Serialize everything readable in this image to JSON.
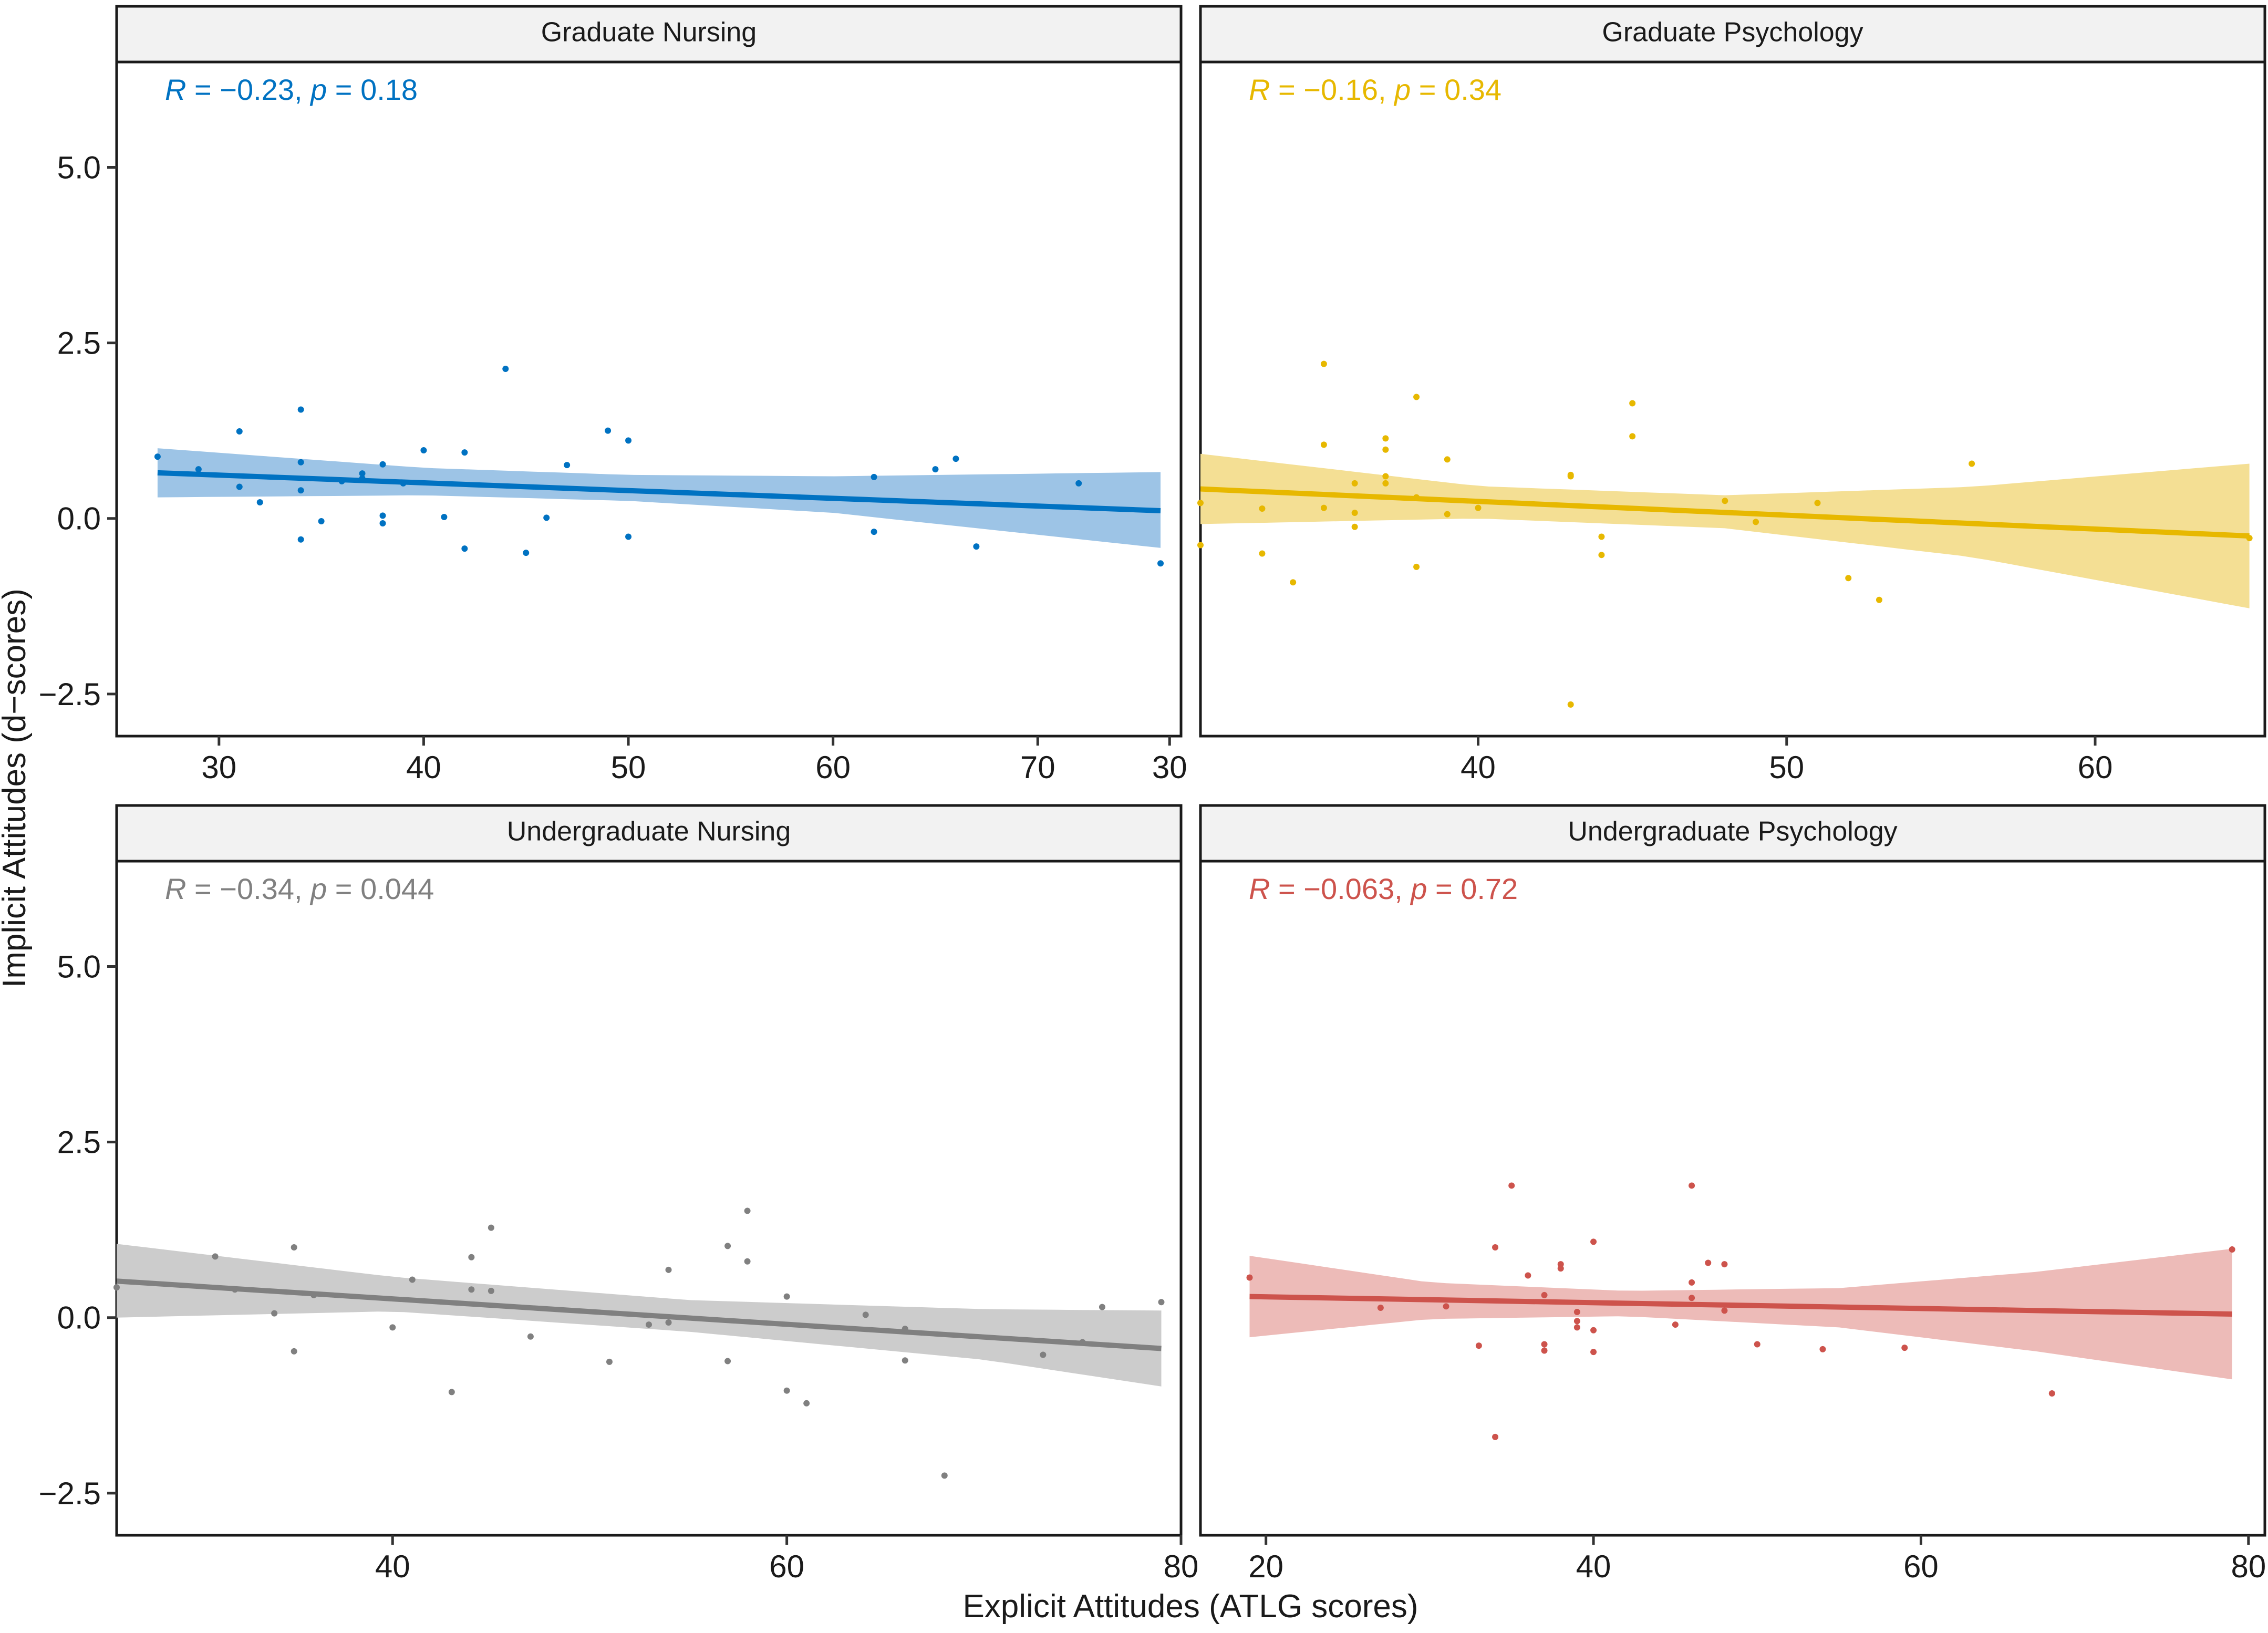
{
  "chart_data": {
    "type": "scatter",
    "layout": "2x2 facet grid",
    "xlabel": "Explicit Attitudes (ATLG scores)",
    "ylabel": "Implicit Attitudes (d−scores)",
    "ylim": [
      -3.1,
      6.5
    ],
    "yticks": [
      -2.5,
      0.0,
      2.5,
      5.0
    ],
    "ytick_labels": [
      "−2.5",
      "0.0",
      "2.5",
      "5.0"
    ],
    "grid": false,
    "facet_rows": [
      {
        "xlim": [
          25,
          77
        ],
        "xticks": [
          30,
          40,
          50,
          60,
          70
        ],
        "xtick_labels": [
          "30",
          "40",
          "50",
          "60",
          "70"
        ]
      },
      {
        "xlim": [
          16,
          81
        ],
        "xticks": [
          40,
          60,
          80
        ],
        "xtick_labels": [
          "40",
          "60",
          "80"
        ]
      }
    ],
    "panels": [
      {
        "name": "Graduate Nursing",
        "color": "#0072C2",
        "band_color": "#9DC4E6",
        "xlim": [
          25,
          77
        ],
        "xticks": [
          30,
          40,
          50,
          60,
          70
        ],
        "xtick_labels": [
          "30",
          "40",
          "50",
          "60",
          "70"
        ],
        "stat": {
          "r_symbol": "R",
          "r_text": " = −0.23, ",
          "p_symbol": "p",
          "p_text": " = 0.18"
        },
        "fit": {
          "x": [
            27,
            76
          ],
          "y": [
            0.65,
            0.11
          ]
        },
        "ci": {
          "x": [
            27,
            40,
            50,
            60,
            76
          ],
          "lower": [
            0.3,
            0.33,
            0.25,
            0.08,
            -0.42
          ],
          "upper": [
            1.0,
            0.72,
            0.62,
            0.6,
            0.66
          ]
        },
        "points": [
          [
            27,
            0.88
          ],
          [
            29,
            0.7
          ],
          [
            31,
            1.24
          ],
          [
            31,
            0.45
          ],
          [
            32,
            0.23
          ],
          [
            34,
            1.55
          ],
          [
            34,
            0.8
          ],
          [
            34,
            0.4
          ],
          [
            34,
            -0.3
          ],
          [
            35,
            -0.04
          ],
          [
            36,
            0.53
          ],
          [
            37,
            0.64
          ],
          [
            37,
            0.57
          ],
          [
            38,
            0.77
          ],
          [
            38,
            0.04
          ],
          [
            38,
            -0.07
          ],
          [
            39,
            0.5
          ],
          [
            40,
            0.97
          ],
          [
            41,
            0.02
          ],
          [
            42,
            0.94
          ],
          [
            42,
            -0.43
          ],
          [
            44,
            2.13
          ],
          [
            45,
            -0.49
          ],
          [
            46,
            0.01
          ],
          [
            47,
            0.76
          ],
          [
            49,
            1.25
          ],
          [
            50,
            1.11
          ],
          [
            50,
            -0.26
          ],
          [
            62,
            0.59
          ],
          [
            62,
            -0.19
          ],
          [
            65,
            0.7
          ],
          [
            66,
            0.85
          ],
          [
            67,
            -0.4
          ],
          [
            72,
            0.5
          ],
          [
            76,
            -0.64
          ]
        ]
      },
      {
        "name": "Graduate Psychology",
        "color": "#E7B800",
        "band_color": "#F4DF94",
        "xlim": [
          31,
          65.5
        ],
        "xticks": [
          30,
          40,
          50,
          60
        ],
        "xtick_labels": [
          "30",
          "40",
          "50",
          "60"
        ],
        "stat": {
          "r_symbol": "R",
          "r_text": " = −0.16, ",
          "p_symbol": "p",
          "p_text": " = 0.34"
        },
        "fit": {
          "x": [
            31,
            65
          ],
          "y": [
            0.42,
            -0.25
          ]
        },
        "ci": {
          "x": [
            31,
            40,
            48,
            56,
            65
          ],
          "lower": [
            -0.08,
            0.0,
            -0.14,
            -0.55,
            -1.28
          ],
          "upper": [
            0.92,
            0.46,
            0.33,
            0.45,
            0.78
          ]
        },
        "points": [
          [
            31,
            0.22
          ],
          [
            31,
            -0.38
          ],
          [
            33,
            0.14
          ],
          [
            33,
            -0.5
          ],
          [
            34,
            -0.91
          ],
          [
            35,
            2.2
          ],
          [
            35,
            1.05
          ],
          [
            35,
            0.15
          ],
          [
            36,
            0.5
          ],
          [
            36,
            0.08
          ],
          [
            36,
            -0.12
          ],
          [
            37,
            1.14
          ],
          [
            37,
            0.98
          ],
          [
            37,
            0.6
          ],
          [
            37,
            0.5
          ],
          [
            38,
            1.73
          ],
          [
            38,
            0.3
          ],
          [
            38,
            -0.69
          ],
          [
            39,
            0.84
          ],
          [
            39,
            0.06
          ],
          [
            40,
            0.15
          ],
          [
            43,
            0.62
          ],
          [
            43,
            0.6
          ],
          [
            43,
            -2.65
          ],
          [
            44,
            -0.26
          ],
          [
            44,
            -0.52
          ],
          [
            45,
            1.64
          ],
          [
            45,
            1.17
          ],
          [
            48,
            0.25
          ],
          [
            49,
            -0.05
          ],
          [
            51,
            0.22
          ],
          [
            52,
            -0.85
          ],
          [
            53,
            -1.16
          ],
          [
            56,
            0.78
          ],
          [
            65,
            -0.28
          ]
        ]
      },
      {
        "name": "Undergraduate Nursing",
        "color": "#808080",
        "band_color": "#CCCCCC",
        "xlim": [
          26,
          80
        ],
        "xticks": [
          40,
          60,
          80
        ],
        "xtick_labels": [
          "40",
          "60",
          "80"
        ],
        "stat": {
          "r_symbol": "R",
          "r_text": " = −0.34, ",
          "p_symbol": "p",
          "p_text": " = 0.044"
        },
        "fit": {
          "x": [
            26,
            79
          ],
          "y": [
            0.52,
            -0.44
          ]
        },
        "ci": {
          "x": [
            26,
            40,
            55,
            70,
            79
          ],
          "lower": [
            0.0,
            0.09,
            -0.2,
            -0.6,
            -0.98
          ],
          "upper": [
            1.05,
            0.58,
            0.25,
            0.12,
            0.1
          ]
        },
        "points": [
          [
            26,
            0.43
          ],
          [
            31,
            0.87
          ],
          [
            32,
            0.4
          ],
          [
            34,
            0.06
          ],
          [
            35,
            1.0
          ],
          [
            35,
            -0.48
          ],
          [
            36,
            0.32
          ],
          [
            40,
            -0.14
          ],
          [
            41,
            0.54
          ],
          [
            43,
            -1.06
          ],
          [
            44,
            0.86
          ],
          [
            44,
            0.4
          ],
          [
            45,
            1.28
          ],
          [
            45,
            0.38
          ],
          [
            47,
            -0.27
          ],
          [
            51,
            -0.63
          ],
          [
            53,
            -0.1
          ],
          [
            54,
            0.68
          ],
          [
            54,
            -0.07
          ],
          [
            57,
            1.02
          ],
          [
            57,
            -0.62
          ],
          [
            58,
            1.52
          ],
          [
            58,
            0.8
          ],
          [
            60,
            0.3
          ],
          [
            60,
            -1.04
          ],
          [
            61,
            -1.22
          ],
          [
            64,
            0.04
          ],
          [
            66,
            -0.16
          ],
          [
            66,
            -0.61
          ],
          [
            68,
            -2.25
          ],
          [
            73,
            -0.53
          ],
          [
            75,
            -0.35
          ],
          [
            76,
            0.15
          ],
          [
            79,
            0.22
          ]
        ]
      },
      {
        "name": "Undergraduate Psychology",
        "color": "#CD534C",
        "band_color": "#EDBBB8",
        "xlim": [
          16,
          81
        ],
        "xticks": [
          20,
          40,
          60,
          80
        ],
        "xtick_labels": [
          "20",
          "40",
          "60",
          "80"
        ],
        "stat": {
          "r_symbol": "R",
          "r_text": " = −0.063, ",
          "p_symbol": "p",
          "p_text": " = 0.72"
        },
        "fit": {
          "x": [
            19,
            79
          ],
          "y": [
            0.3,
            0.05
          ]
        },
        "ci": {
          "x": [
            19,
            30,
            42,
            55,
            67,
            79
          ],
          "lower": [
            -0.28,
            -0.02,
            0.02,
            -0.14,
            -0.48,
            -0.88
          ],
          "upper": [
            0.88,
            0.5,
            0.38,
            0.42,
            0.65,
            0.98
          ]
        },
        "points": [
          [
            19,
            0.57
          ],
          [
            27,
            0.14
          ],
          [
            31,
            0.16
          ],
          [
            33,
            -0.4
          ],
          [
            34,
            1.0
          ],
          [
            34,
            -1.7
          ],
          [
            35,
            1.88
          ],
          [
            36,
            0.6
          ],
          [
            37,
            0.32
          ],
          [
            37,
            -0.38
          ],
          [
            37,
            -0.47
          ],
          [
            38,
            0.76
          ],
          [
            38,
            0.7
          ],
          [
            39,
            0.08
          ],
          [
            39,
            -0.05
          ],
          [
            39,
            -0.14
          ],
          [
            40,
            1.08
          ],
          [
            40,
            -0.18
          ],
          [
            40,
            -0.49
          ],
          [
            45,
            -0.1
          ],
          [
            46,
            1.88
          ],
          [
            46,
            0.5
          ],
          [
            46,
            0.28
          ],
          [
            47,
            0.78
          ],
          [
            48,
            0.76
          ],
          [
            48,
            0.1
          ],
          [
            50,
            -0.38
          ],
          [
            54,
            -0.45
          ],
          [
            59,
            -0.43
          ],
          [
            68,
            -1.08
          ],
          [
            79,
            0.97
          ]
        ]
      }
    ]
  }
}
